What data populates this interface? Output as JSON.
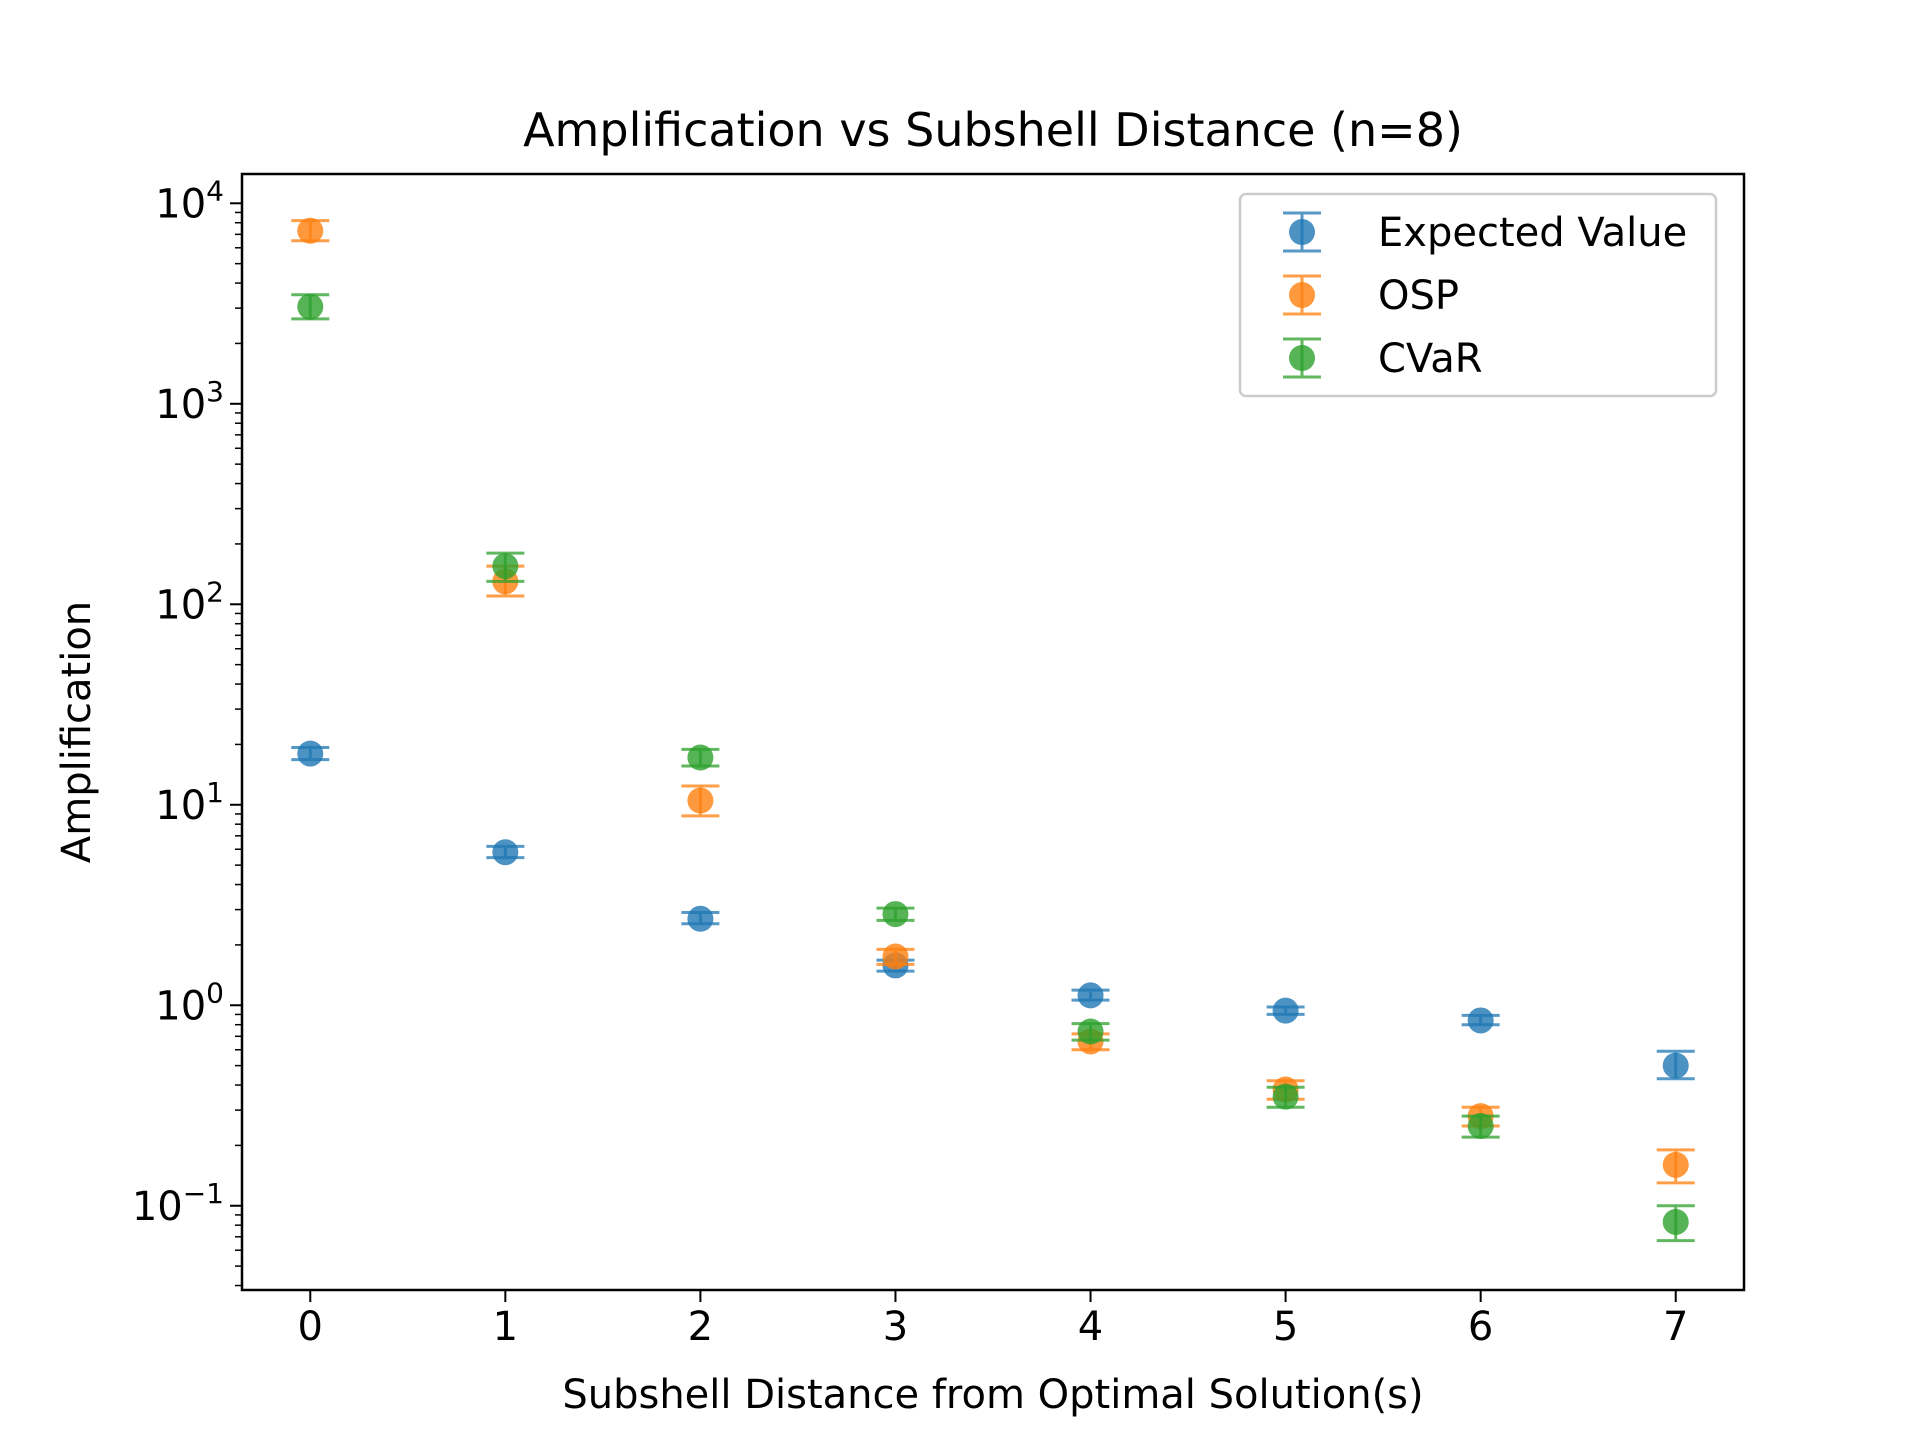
{
  "chart_data": {
    "type": "scatter",
    "title": "Amplification vs Subshell Distance (n=8)",
    "xlabel": "Subshell Distance from Optimal Solution(s)",
    "ylabel": "Amplification",
    "x": [
      0,
      1,
      2,
      3,
      4,
      5,
      6,
      7
    ],
    "x_ticks": [
      "0",
      "1",
      "2",
      "3",
      "4",
      "5",
      "6",
      "7"
    ],
    "xlim": [
      -0.35,
      7.35
    ],
    "ylim": [
      0.038,
      14000
    ],
    "y_scale": "log",
    "y_ticks": [
      {
        "value": 0.1,
        "base": "10",
        "exp": "−1"
      },
      {
        "value": 1,
        "base": "10",
        "exp": "0"
      },
      {
        "value": 10,
        "base": "10",
        "exp": "1"
      },
      {
        "value": 100,
        "base": "10",
        "exp": "2"
      },
      {
        "value": 1000,
        "base": "10",
        "exp": "3"
      },
      {
        "value": 10000,
        "base": "10",
        "exp": "4"
      }
    ],
    "grid": false,
    "legend_position": "top-right",
    "series": [
      {
        "name": "Expected Value",
        "color": "#1f77b4",
        "values": [
          18,
          5.8,
          2.7,
          1.58,
          1.12,
          0.94,
          0.84,
          0.5
        ],
        "err_low": [
          16.8,
          5.45,
          2.55,
          1.48,
          1.06,
          0.9,
          0.8,
          0.43
        ],
        "err_high": [
          19.3,
          6.2,
          2.9,
          1.68,
          1.19,
          0.98,
          0.89,
          0.59
        ]
      },
      {
        "name": "OSP",
        "color": "#ff7f0e",
        "values": [
          7300,
          130,
          10.5,
          1.75,
          0.66,
          0.38,
          0.28,
          0.16
        ],
        "err_low": [
          6500,
          110,
          8.8,
          1.6,
          0.6,
          0.34,
          0.25,
          0.13
        ],
        "err_high": [
          8200,
          155,
          12.4,
          1.9,
          0.72,
          0.42,
          0.31,
          0.19
        ]
      },
      {
        "name": "CVaR",
        "color": "#2ca02c",
        "values": [
          3050,
          155,
          17.2,
          2.85,
          0.74,
          0.35,
          0.25,
          0.083
        ],
        "err_low": [
          2650,
          130,
          15.6,
          2.65,
          0.67,
          0.31,
          0.22,
          0.067
        ],
        "err_high": [
          3500,
          180,
          18.9,
          3.05,
          0.81,
          0.39,
          0.28,
          0.1
        ]
      }
    ]
  }
}
